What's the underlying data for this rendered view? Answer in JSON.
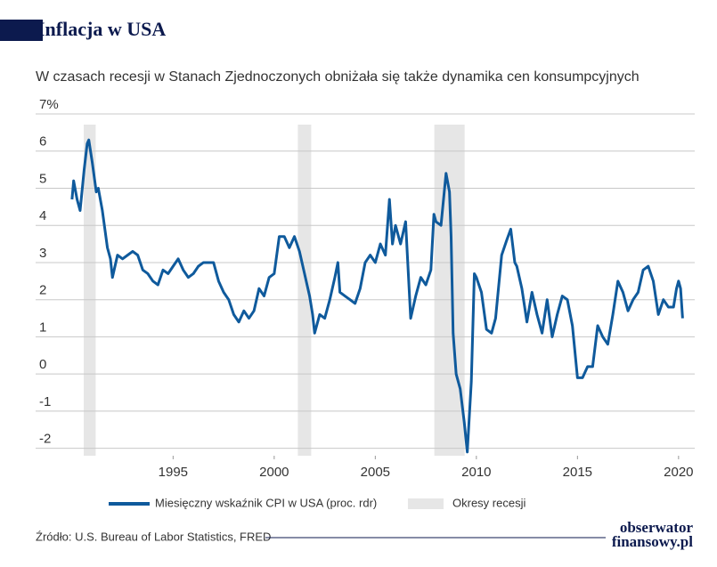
{
  "chart_data": {
    "type": "line",
    "title": "Inflacja w USA",
    "subtitle": "W czasach recesji w Stanach Zjednoczonych obniżała się także dynamika cen konsumpcyjnych",
    "source": "Źródło: U.S. Bureau of Labor Statistics, FRED",
    "logo": [
      "obserwator",
      "finansowy.pl"
    ],
    "recession_label": "Okresy recesji",
    "recession_color": "#e6e6e6",
    "recessions": [
      [
        1990.58,
        1991.17
      ],
      [
        2001.17,
        2001.83
      ],
      [
        2007.92,
        2009.42
      ]
    ],
    "xlim": [
      1988.2,
      2020.8
    ],
    "xticks": [
      1995,
      2000,
      2005,
      2010,
      2015,
      2020
    ],
    "ylim": [
      -2.2,
      7
    ],
    "yticks": [
      -2,
      -1,
      0,
      1,
      2,
      3,
      4,
      5,
      6,
      {
        "value": 7,
        "label": "7%"
      }
    ],
    "grid": true,
    "series": [
      {
        "name": "Miesięczny wskaźnik CPI w USA (proc. rdr)",
        "color": "#0f5a9c",
        "x": [
          1990.0,
          1990.08,
          1990.25,
          1990.4,
          1990.6,
          1990.75,
          1990.83,
          1991.0,
          1991.2,
          1991.3,
          1991.5,
          1991.75,
          1991.9,
          1992.0,
          1992.25,
          1992.5,
          1992.75,
          1993.0,
          1993.25,
          1993.5,
          1993.75,
          1994.0,
          1994.25,
          1994.5,
          1994.75,
          1995.0,
          1995.25,
          1995.5,
          1995.75,
          1996.0,
          1996.25,
          1996.5,
          1996.75,
          1997.0,
          1997.25,
          1997.5,
          1997.75,
          1998.0,
          1998.25,
          1998.5,
          1998.75,
          1999.0,
          1999.25,
          1999.5,
          1999.75,
          2000.0,
          2000.25,
          2000.5,
          2000.75,
          2001.0,
          2001.25,
          2001.5,
          2001.75,
          2001.9,
          2002.0,
          2002.25,
          2002.5,
          2002.75,
          2003.0,
          2003.15,
          2003.25,
          2003.5,
          2003.75,
          2004.0,
          2004.25,
          2004.5,
          2004.75,
          2005.0,
          2005.25,
          2005.5,
          2005.7,
          2005.85,
          2006.0,
          2006.25,
          2006.5,
          2006.75,
          2007.0,
          2007.25,
          2007.5,
          2007.75,
          2007.9,
          2008.0,
          2008.25,
          2008.5,
          2008.67,
          2008.75,
          2008.85,
          2009.0,
          2009.2,
          2009.4,
          2009.55,
          2009.75,
          2009.9,
          2010.0,
          2010.25,
          2010.5,
          2010.75,
          2010.95,
          2011.25,
          2011.5,
          2011.7,
          2011.9,
          2012.0,
          2012.25,
          2012.5,
          2012.75,
          2013.0,
          2013.25,
          2013.5,
          2013.75,
          2014.0,
          2014.25,
          2014.5,
          2014.75,
          2015.0,
          2015.25,
          2015.5,
          2015.75,
          2016.0,
          2016.25,
          2016.5,
          2016.75,
          2017.0,
          2017.25,
          2017.5,
          2017.75,
          2018.0,
          2018.25,
          2018.5,
          2018.75,
          2019.0,
          2019.25,
          2019.5,
          2019.75,
          2019.9,
          2020.0,
          2020.1,
          2020.2
        ],
        "values": [
          4.7,
          5.2,
          4.7,
          4.4,
          5.5,
          6.2,
          6.3,
          5.7,
          4.9,
          5.0,
          4.4,
          3.4,
          3.1,
          2.6,
          3.2,
          3.1,
          3.2,
          3.3,
          3.2,
          2.8,
          2.7,
          2.5,
          2.4,
          2.8,
          2.7,
          2.9,
          3.1,
          2.8,
          2.6,
          2.7,
          2.9,
          3.0,
          3.0,
          3.0,
          2.5,
          2.2,
          2.0,
          1.6,
          1.4,
          1.7,
          1.5,
          1.7,
          2.3,
          2.1,
          2.6,
          2.7,
          3.7,
          3.7,
          3.4,
          3.7,
          3.3,
          2.7,
          2.1,
          1.6,
          1.1,
          1.6,
          1.5,
          2.0,
          2.6,
          3.0,
          2.2,
          2.1,
          2.0,
          1.9,
          2.3,
          3.0,
          3.2,
          3.0,
          3.5,
          3.2,
          4.7,
          3.5,
          4.0,
          3.5,
          4.1,
          1.5,
          2.1,
          2.6,
          2.4,
          2.8,
          4.3,
          4.1,
          4.0,
          5.4,
          4.9,
          3.7,
          1.1,
          0.0,
          -0.4,
          -1.3,
          -2.1,
          -0.2,
          2.7,
          2.6,
          2.2,
          1.2,
          1.1,
          1.5,
          3.2,
          3.6,
          3.9,
          3.0,
          2.9,
          2.3,
          1.4,
          2.2,
          1.6,
          1.1,
          2.0,
          1.0,
          1.6,
          2.1,
          2.0,
          1.3,
          -0.1,
          -0.1,
          0.2,
          0.2,
          1.3,
          1.0,
          0.8,
          1.6,
          2.5,
          2.2,
          1.7,
          2.0,
          2.2,
          2.8,
          2.9,
          2.5,
          1.6,
          2.0,
          1.8,
          1.8,
          2.3,
          2.5,
          2.3,
          1.5
        ]
      }
    ]
  }
}
